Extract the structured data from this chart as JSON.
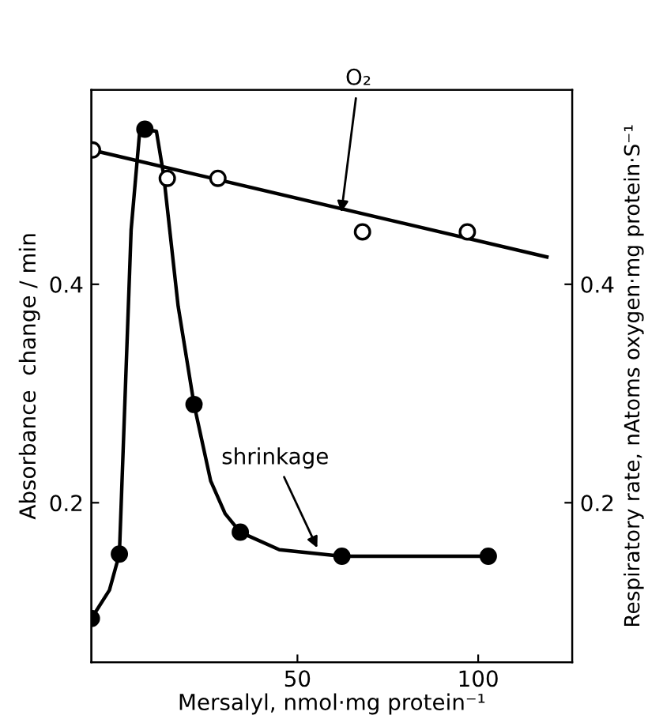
{
  "chart_data": {
    "type": "scatter",
    "xlabel": "Mersalyl, nmol·mg protein⁻¹",
    "ylabel": "Absorbance  change / min",
    "y2label": "Respiratory rate, nAtoms oxygen·mg protein·S⁻¹",
    "xlim": [
      -7,
      126
    ],
    "xticks": [
      50,
      100
    ],
    "ylim": [
      0.054,
      0.578
    ],
    "yticks": [
      0.2,
      0.4
    ],
    "y2lim": [
      0.054,
      0.578
    ],
    "y2ticks": [
      0.2,
      0.4
    ],
    "grid": false,
    "legend": false,
    "series": [
      {
        "type": "line",
        "color": "#000000",
        "marker": "none",
        "x": [
          -7,
          -2,
          0.75,
          4,
          6.5,
          7.8,
          11,
          13,
          17,
          21.4,
          26,
          30,
          34.2,
          45,
          62.3,
          102.8
        ],
        "values": [
          0.094,
          0.12,
          0.153,
          0.45,
          0.545,
          0.542,
          0.54,
          0.5,
          0.38,
          0.29,
          0.22,
          0.19,
          0.173,
          0.157,
          0.151,
          0.151
        ]
      },
      {
        "color": "#000000",
        "marker": "circle",
        "x": [
          -7,
          0.75,
          7.8,
          21.4,
          34.2,
          62.3,
          102.8
        ],
        "values": [
          0.094,
          0.153,
          0.542,
          0.29,
          0.173,
          0.151,
          0.151
        ]
      },
      {
        "type": "line",
        "color": "#000000",
        "marker": "none",
        "x": [
          -7,
          119
        ],
        "values": [
          0.523,
          0.425
        ]
      },
      {
        "color": "#ffffff",
        "marker": "circle",
        "x": [
          -6.7,
          14,
          28,
          68,
          97
        ],
        "values": [
          0.523,
          0.497,
          0.497,
          0.448,
          0.448
        ]
      }
    ],
    "annotations": [
      {
        "text": "O₂",
        "x": 62,
        "y": 0.462
      },
      {
        "text": "shrinkage",
        "x": 56,
        "y": 0.155
      }
    ]
  }
}
